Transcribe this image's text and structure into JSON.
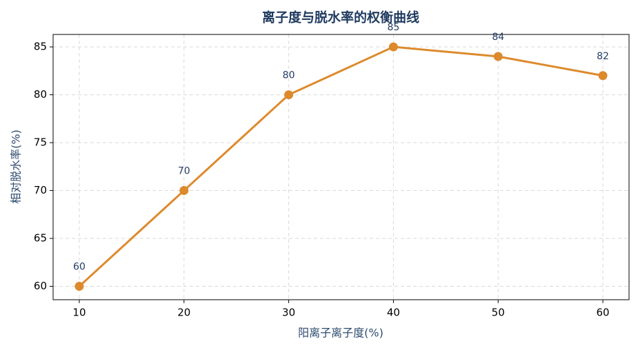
{
  "chart_data": {
    "type": "line",
    "title": "离子度与脱水率的权衡曲线",
    "xlabel": "阳离子离子度(%)",
    "ylabel": "相对脱水率(%)",
    "x": [
      10,
      20,
      30,
      40,
      50,
      60
    ],
    "series": [
      {
        "name": "相对脱水率",
        "color": "#dd8a2c",
        "values": [
          60,
          70,
          80,
          85,
          84,
          82
        ]
      }
    ],
    "xlim": [
      7.5,
      62.5
    ],
    "xticks": [
      10,
      20,
      30,
      40,
      50,
      60
    ],
    "ylim": [
      58.6,
      86.3
    ],
    "yticks": [
      60,
      65,
      70,
      75,
      80,
      85
    ],
    "grid": true
  }
}
